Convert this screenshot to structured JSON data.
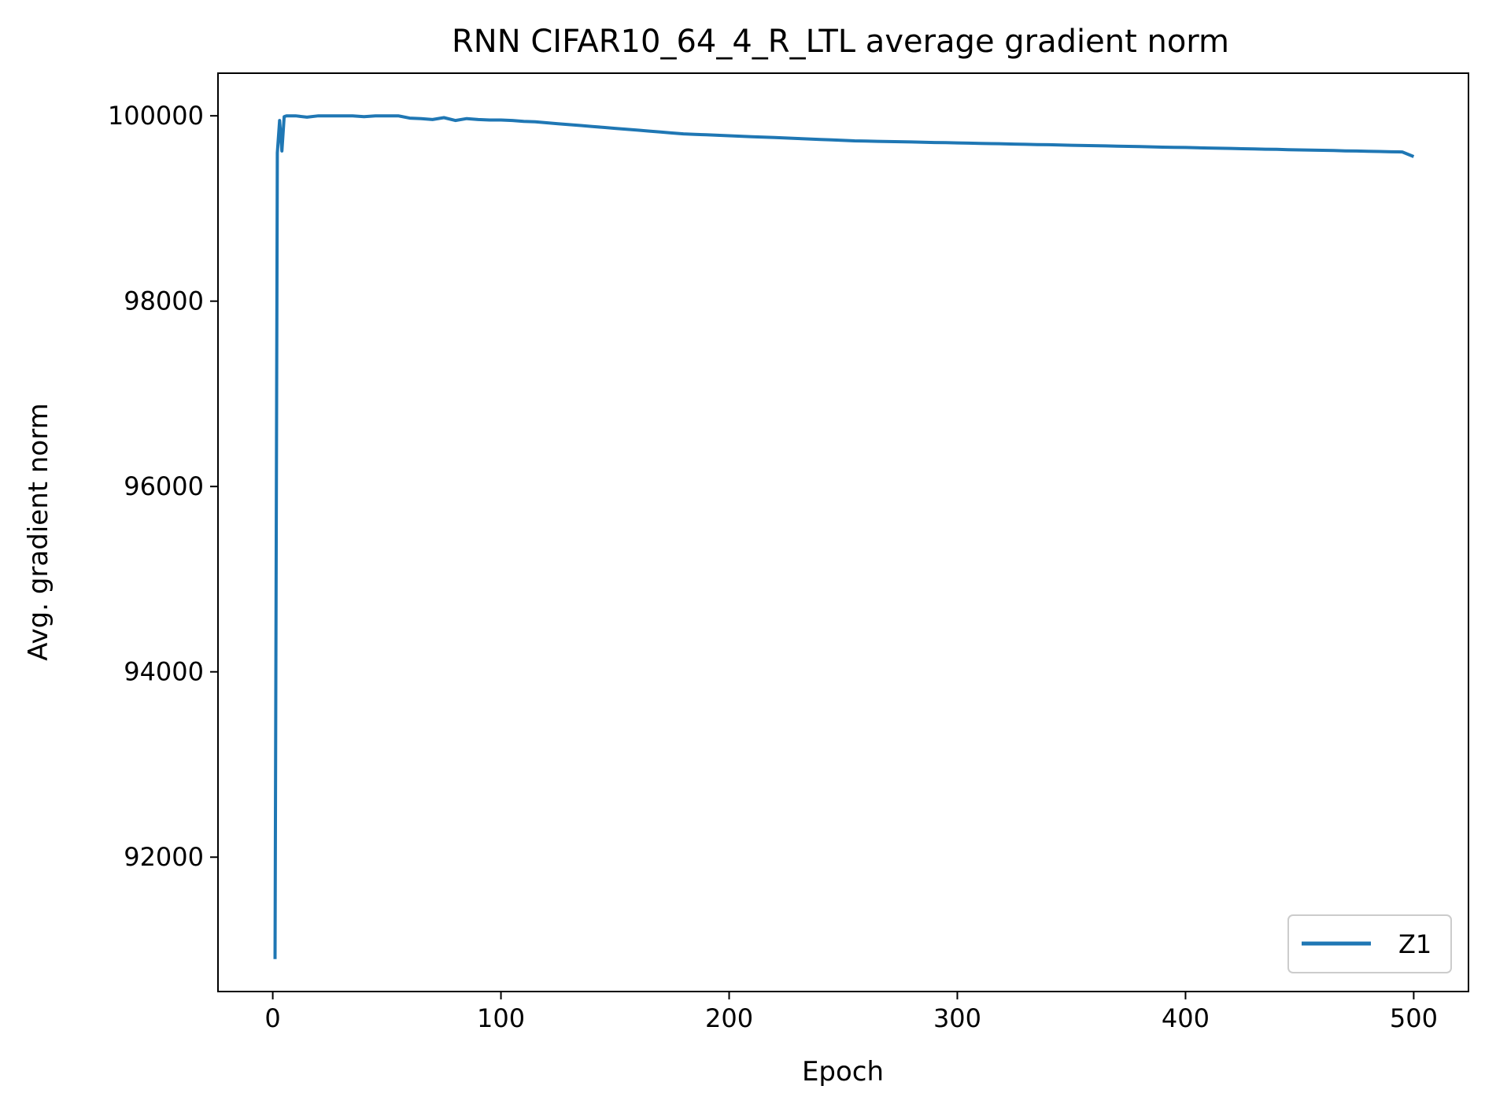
{
  "chart_data": {
    "type": "line",
    "title": "RNN CIFAR10_64_4_R_LTL average gradient norm",
    "xlabel": "Epoch",
    "ylabel": "Avg. gradient norm",
    "xlim": [
      -24,
      524
    ],
    "ylim": [
      90550,
      100460
    ],
    "xticks": [
      0,
      100,
      200,
      300,
      400,
      500
    ],
    "yticks": [
      92000,
      94000,
      96000,
      98000,
      100000
    ],
    "grid": false,
    "legend": {
      "placement": "lower-right"
    },
    "series": [
      {
        "name": "Z1",
        "color": "#1f77b4",
        "x": [
          1,
          2,
          3,
          4,
          5,
          6,
          8,
          10,
          15,
          20,
          25,
          30,
          35,
          40,
          45,
          50,
          55,
          60,
          65,
          70,
          75,
          80,
          85,
          90,
          95,
          100,
          105,
          110,
          115,
          120,
          125,
          130,
          135,
          140,
          145,
          150,
          155,
          160,
          165,
          170,
          175,
          180,
          185,
          190,
          195,
          200,
          205,
          210,
          215,
          220,
          225,
          230,
          235,
          240,
          245,
          250,
          255,
          260,
          265,
          270,
          275,
          280,
          285,
          290,
          295,
          300,
          305,
          310,
          315,
          320,
          325,
          330,
          335,
          340,
          345,
          350,
          355,
          360,
          365,
          370,
          375,
          380,
          385,
          390,
          395,
          400,
          405,
          410,
          415,
          420,
          425,
          430,
          435,
          440,
          445,
          450,
          455,
          460,
          465,
          470,
          475,
          480,
          485,
          490,
          495,
          500
        ],
        "y": [
          90900,
          99600,
          99950,
          99620,
          99990,
          100000,
          100000,
          100000,
          99985,
          100000,
          100000,
          100000,
          100000,
          99990,
          100000,
          100000,
          100000,
          99975,
          99970,
          99960,
          99980,
          99950,
          99970,
          99960,
          99955,
          99955,
          99950,
          99940,
          99935,
          99925,
          99915,
          99905,
          99895,
          99885,
          99875,
          99865,
          99855,
          99845,
          99835,
          99825,
          99815,
          99805,
          99800,
          99795,
          99790,
          99785,
          99780,
          99775,
          99770,
          99765,
          99760,
          99755,
          99750,
          99745,
          99740,
          99735,
          99730,
          99728,
          99725,
          99722,
          99720,
          99718,
          99715,
          99712,
          99710,
          99708,
          99705,
          99702,
          99700,
          99698,
          99695,
          99692,
          99690,
          99688,
          99685,
          99682,
          99680,
          99678,
          99675,
          99672,
          99670,
          99668,
          99665,
          99662,
          99660,
          99658,
          99655,
          99652,
          99650,
          99648,
          99645,
          99642,
          99640,
          99638,
          99635,
          99632,
          99630,
          99628,
          99625,
          99622,
          99620,
          99618,
          99615,
          99612,
          99610,
          99560
        ]
      }
    ]
  }
}
